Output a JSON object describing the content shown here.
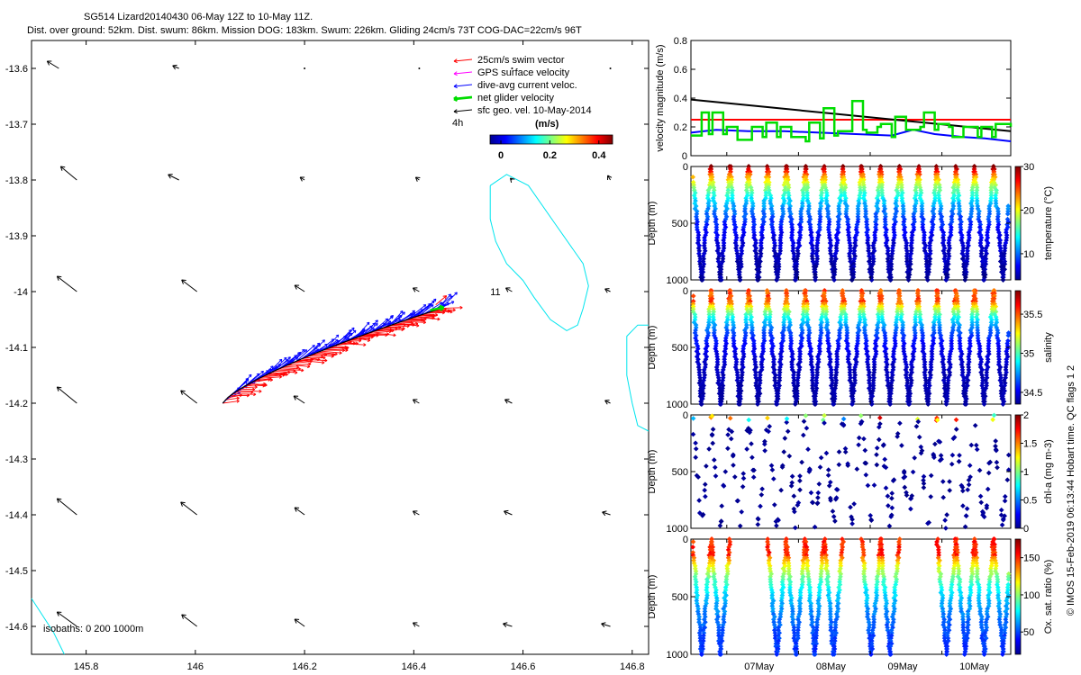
{
  "title": {
    "line1": "SG514 Lizard20140430 06-May 12Z to 10-May 11Z.",
    "line2": "Dist. over ground: 52km. Dist. swum: 86km. Mission DOG: 183km. Swum: 226km. Gliding 24cm/s 73T COG-DAC=22cm/s 96T"
  },
  "footer": {
    "side_text": "© IMOS 15-Feb-2019 06:13:44 Hobart time. QC flags 1  2",
    "isobaths": "isobaths: 0   200  1000m"
  },
  "colors": {
    "swim": "#ff0000",
    "gps": "#ff00ff",
    "dac": "#0000ff",
    "net": "#00dd00",
    "sfc": "#000000",
    "isobath": "#00e5ee"
  },
  "chart_data": [
    {
      "type": "scatter",
      "name": "map",
      "xlim": [
        145.7,
        146.83
      ],
      "ylim": [
        -14.65,
        -13.55
      ],
      "x_ticks": [
        "145.8",
        "146",
        "146.2",
        "146.4",
        "146.6",
        "146.8"
      ],
      "y_ticks": [
        "-13.6",
        "-13.7",
        "-13.8",
        "-13.9",
        "-14",
        "-14.1",
        "-14.2",
        "-14.3",
        "-14.4",
        "-14.5",
        "-14.6"
      ],
      "x_tick_values": [
        145.8,
        146.0,
        146.2,
        146.4,
        146.6,
        146.8
      ],
      "y_tick_values": [
        -13.6,
        -13.7,
        -13.8,
        -13.9,
        -14.0,
        -14.1,
        -14.2,
        -14.3,
        -14.4,
        -14.5,
        -14.6
      ],
      "annotation": "11",
      "annotation_lon": 146.54,
      "annotation_lat": -14.0,
      "legend": {
        "entries": [
          {
            "label": "25cm/s swim vector",
            "color_key": "swim"
          },
          {
            "label": "GPS surface velocity",
            "color_key": "gps"
          },
          {
            "label": "dive-avg current veloc.",
            "color_key": "dac"
          },
          {
            "label": "net glider velocity",
            "color_key": "net"
          },
          {
            "label": "sfc geo. vel. 10-May-2014",
            "color_key": "sfc"
          }
        ],
        "scale_label": "4h",
        "units": "(m/s)",
        "colorbar_ticks": [
          "0",
          "0.2",
          "0.4"
        ],
        "colorbar_range": [
          0,
          0.5
        ]
      },
      "track": {
        "start": [
          146.05,
          -14.2
        ],
        "end": [
          146.45,
          -14.03
        ]
      },
      "geo_velocity_grid": {
        "lons": [
          145.75,
          145.97,
          146.2,
          146.41,
          146.58,
          146.76
        ],
        "lats": [
          -13.6,
          -13.8,
          -14.0,
          -14.2,
          -14.4,
          -14.6
        ],
        "u_cm_s": [
          [
            -13,
            -7,
            0,
            0,
            0,
            0
          ],
          [
            -18,
            -12,
            -5,
            -4,
            -2,
            -3
          ],
          [
            -22,
            -17,
            -11,
            -7,
            -7,
            -6
          ],
          [
            -22,
            -18,
            -12,
            -7,
            -8,
            -6
          ],
          [
            -22,
            -18,
            -11,
            -7,
            -9,
            -9
          ],
          [
            -22,
            -17,
            -11,
            -7,
            -10,
            -10
          ]
        ],
        "v_cm_s": [
          [
            8,
            3,
            0,
            0,
            0,
            0
          ],
          [
            15,
            6,
            3,
            3,
            2,
            5
          ],
          [
            17,
            13,
            7,
            4,
            4,
            3
          ],
          [
            18,
            14,
            8,
            4,
            4,
            3
          ],
          [
            18,
            14,
            8,
            4,
            4,
            3
          ],
          [
            16,
            13,
            8,
            4,
            3,
            3
          ]
        ]
      }
    },
    {
      "type": "line",
      "name": "velocity",
      "ylabel": "velocity magnitude (m/s)",
      "ylim": [
        0,
        0.8
      ],
      "y_ticks": [
        "0",
        "0.2",
        "0.4",
        "0.6",
        "0.8"
      ],
      "y_tick_values": [
        0,
        0.2,
        0.4,
        0.6,
        0.8
      ],
      "xlim_days": [
        6.5,
        10.96
      ],
      "series": [
        {
          "name": "swim",
          "color_key": "swim",
          "days": [
            6.5,
            10.96
          ],
          "values": [
            0.25,
            0.25
          ]
        },
        {
          "name": "sfc geo",
          "color_key": "sfc",
          "days": [
            6.5,
            10.96
          ],
          "values": [
            0.39,
            0.17
          ]
        },
        {
          "name": "dac",
          "color_key": "dac",
          "days": [
            6.5,
            6.85,
            7.3,
            7.8,
            8.3,
            8.8,
            9.3,
            9.6,
            9.9,
            10.3,
            10.6,
            10.96
          ],
          "values": [
            0.16,
            0.18,
            0.17,
            0.17,
            0.16,
            0.15,
            0.14,
            0.18,
            0.15,
            0.13,
            0.12,
            0.1
          ]
        },
        {
          "name": "net",
          "color_key": "net",
          "days": [
            6.5,
            6.6,
            6.65,
            6.75,
            6.8,
            6.95,
            7.0,
            7.1,
            7.15,
            7.3,
            7.35,
            7.5,
            7.55,
            7.7,
            7.75,
            7.9,
            7.95,
            8.1,
            8.15,
            8.3,
            8.35,
            8.5,
            8.55,
            8.7,
            8.75,
            8.9,
            8.95,
            9.1,
            9.15,
            9.3,
            9.35,
            9.5,
            9.55,
            9.7,
            9.75,
            9.9,
            9.95,
            10.1,
            10.15,
            10.3,
            10.35,
            10.5,
            10.55,
            10.7,
            10.75,
            10.96
          ],
          "values": [
            0.14,
            0.14,
            0.3,
            0.15,
            0.3,
            0.15,
            0.2,
            0.2,
            0.11,
            0.11,
            0.2,
            0.13,
            0.23,
            0.13,
            0.2,
            0.13,
            0.13,
            0.1,
            0.23,
            0.12,
            0.33,
            0.14,
            0.17,
            0.17,
            0.38,
            0.18,
            0.16,
            0.2,
            0.22,
            0.13,
            0.27,
            0.18,
            0.18,
            0.2,
            0.3,
            0.18,
            0.22,
            0.2,
            0.13,
            0.2,
            0.2,
            0.13,
            0.2,
            0.13,
            0.22,
            0.2
          ]
        }
      ]
    },
    {
      "type": "scatter",
      "name": "temperature",
      "ylabel": "Depth (m)",
      "clabel": "temperature (°C)",
      "ylim": [
        1000,
        0
      ],
      "y_ticks": [
        "0",
        "500",
        "1000"
      ],
      "y_tick_values": [
        0,
        500,
        1000
      ],
      "colorbar_ticks": [
        "10",
        "20",
        "30"
      ],
      "colorbar_tick_values": [
        10,
        20,
        30
      ],
      "crange": [
        4,
        30
      ],
      "profile": "temperature",
      "dive_start_day": 6.52,
      "dive_period_days": 0.2625,
      "dive_count": 17,
      "max_depth_m": 1000,
      "sampling": "dense"
    },
    {
      "type": "scatter",
      "name": "salinity",
      "ylabel": "Depth (m)",
      "clabel": "salinity",
      "ylim": [
        1000,
        0
      ],
      "y_ticks": [
        "0",
        "500",
        "1000"
      ],
      "y_tick_values": [
        0,
        500,
        1000
      ],
      "colorbar_ticks": [
        "34.5",
        "35",
        "35.5"
      ],
      "colorbar_tick_values": [
        34.5,
        35.0,
        35.5
      ],
      "crange": [
        34.35,
        35.8
      ],
      "profile": "salinity",
      "dive_start_day": 6.52,
      "dive_period_days": 0.2625,
      "dive_count": 17,
      "max_depth_m": 1000,
      "sampling": "dense"
    },
    {
      "type": "scatter",
      "name": "chlorophyll",
      "ylabel": "Depth (m)",
      "clabel": "chl-a (mg m-3)",
      "ylim": [
        1000,
        0
      ],
      "y_ticks": [
        "0",
        "500",
        "1000"
      ],
      "y_tick_values": [
        0,
        500,
        1000
      ],
      "colorbar_ticks": [
        "0",
        "0.5",
        "1",
        "1.5",
        "2"
      ],
      "colorbar_tick_values": [
        0,
        0.5,
        1.0,
        1.5,
        2.0
      ],
      "crange": [
        0,
        2
      ],
      "profile": "chlorophyll",
      "dive_start_day": 6.52,
      "dive_period_days": 0.2625,
      "dive_count": 17,
      "max_depth_m": 1000,
      "sampling": "sparse"
    },
    {
      "type": "scatter",
      "name": "oxygen",
      "ylabel": "Depth (m)",
      "clabel": "Ox. sat. ratio (%)",
      "ylim": [
        1000,
        0
      ],
      "y_ticks": [
        "0",
        "500",
        "1000"
      ],
      "y_tick_values": [
        0,
        500,
        1000
      ],
      "colorbar_ticks": [
        "50",
        "100",
        "150"
      ],
      "colorbar_tick_values": [
        50,
        100,
        150
      ],
      "crange": [
        20,
        175
      ],
      "profile": "oxygen",
      "dive_start_day": 6.52,
      "dive_period_days": 0.2625,
      "dive_count": 17,
      "max_depth_m": 1000,
      "sampling": "dense",
      "gaps": [
        2,
        3,
        8,
        11,
        12
      ],
      "x_ticks": [
        "07May",
        "08May",
        "09May",
        "10May"
      ],
      "x_tick_days": [
        7,
        8,
        9,
        10
      ]
    }
  ]
}
